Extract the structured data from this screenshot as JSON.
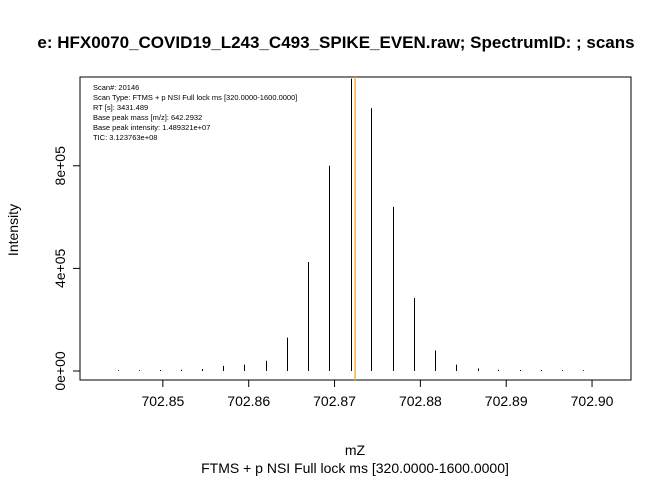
{
  "chart_data": {
    "type": "spectrum",
    "title": "e: HFX0070_COVID19_L243_C493_SPIKE_EVEN.raw; SpectrumID: ; scans",
    "xlabel": "mZ",
    "subtitle": "FTMS + p NSI Full lock ms [320.0000-1600.0000]",
    "ylabel": "Intensity",
    "xlim": [
      702.8425,
      702.9025
    ],
    "ylim": [
      0,
      1150000
    ],
    "x_ticks": [
      702.85,
      702.86,
      702.87,
      702.88,
      702.89,
      702.9
    ],
    "x_tick_labels": [
      "702.85",
      "702.86",
      "702.87",
      "702.88",
      "702.89",
      "702.90"
    ],
    "y_ticks": [
      0,
      400000,
      800000
    ],
    "y_tick_labels": [
      "0e+00",
      "4e+05",
      "8e+05"
    ],
    "grid": false,
    "info_lines": [
      "Scan#:  20146",
      "Scan Type:  FTMS + p NSI Full lock ms [320.0000-1600.0000]",
      "RT [s]:  3431.489",
      "Base peak mass [m/z]:  642.2932",
      "Base peak intensity:  1.489321e+07",
      "TIC:  3.123763e+08"
    ],
    "reference_line": {
      "x": 702.8724,
      "color": "#f5b041"
    },
    "peaks": {
      "mz": [
        702.8448,
        702.8472,
        702.8497,
        702.8521,
        702.8546,
        702.857,
        702.8595,
        702.862,
        702.8645,
        702.8669,
        702.8694,
        702.8719,
        702.8743,
        702.8768,
        702.8793,
        702.8817,
        702.8842,
        702.8867,
        702.8891,
        702.8916,
        702.8941,
        702.8965,
        702.899
      ],
      "intensity": [
        3000,
        3000,
        4000,
        5000,
        8000,
        20000,
        25000,
        40000,
        130000,
        425000,
        800000,
        1140000,
        1025000,
        640000,
        285000,
        80000,
        25000,
        10000,
        5000,
        4000,
        4000,
        3000,
        3000
      ]
    },
    "bar_color": "#000000"
  }
}
